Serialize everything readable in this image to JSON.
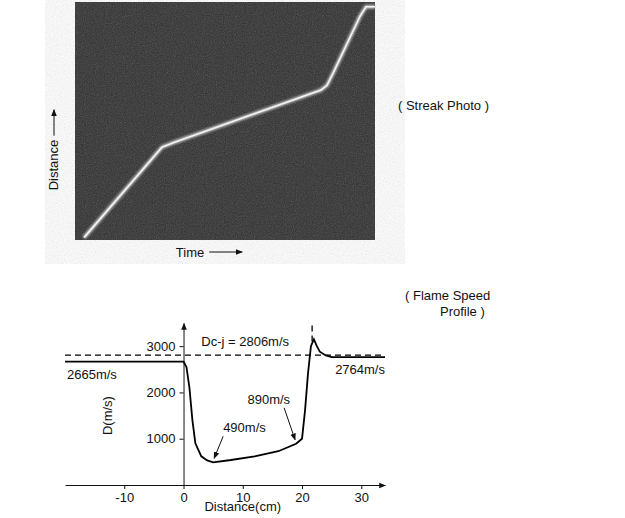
{
  "chart_data": {
    "type": "line",
    "title": "( Flame Speed Profile )",
    "x_label": "Distance(cm)",
    "y_label": "D(m/s)",
    "xlim": [
      -20,
      34
    ],
    "xticks": [
      -10,
      0,
      10,
      20,
      30
    ],
    "ylim": [
      0,
      3500
    ],
    "yticks": [
      1000,
      2000,
      3000
    ],
    "grid": false,
    "series": [
      {
        "color": "#000000",
        "line_style": "solid",
        "x": [
          -20,
          -10,
          0,
          0.5,
          1,
          1.5,
          2,
          3,
          4,
          5,
          8,
          12,
          16,
          19,
          20,
          20.5,
          21,
          21.5,
          22,
          22.5,
          23,
          24,
          25,
          28,
          34
        ],
        "values": [
          2665,
          2665,
          2665,
          2550,
          2100,
          1400,
          900,
          620,
          530,
          490,
          540,
          620,
          730,
          890,
          1000,
          1600,
          2400,
          3000,
          3150,
          3000,
          2880,
          2800,
          2764,
          2764,
          2764
        ]
      },
      {
        "color": "#000000",
        "line_style": "dashed",
        "x": [
          21.7,
          21.7
        ],
        "values": [
          3100,
          3500
        ]
      },
      {
        "color": "#000000",
        "line_style": "dashed",
        "x": [
          -20,
          34
        ],
        "values": [
          2806,
          2806
        ]
      }
    ],
    "annotations": [
      {
        "text": "Dc-j = 2806m/s",
        "x": 3,
        "y": 2806
      },
      {
        "text": "2665m/s",
        "x": -20,
        "y": 2665
      },
      {
        "text": "490m/s",
        "x": 5,
        "y": 490
      },
      {
        "text": "890m/s",
        "x": 19,
        "y": 890
      },
      {
        "text": "2764m/s",
        "x": 34,
        "y": 2764
      }
    ]
  },
  "streak_photo": {
    "title": "( Streak Photo )",
    "x_label": "Time",
    "y_label": "Distance"
  }
}
